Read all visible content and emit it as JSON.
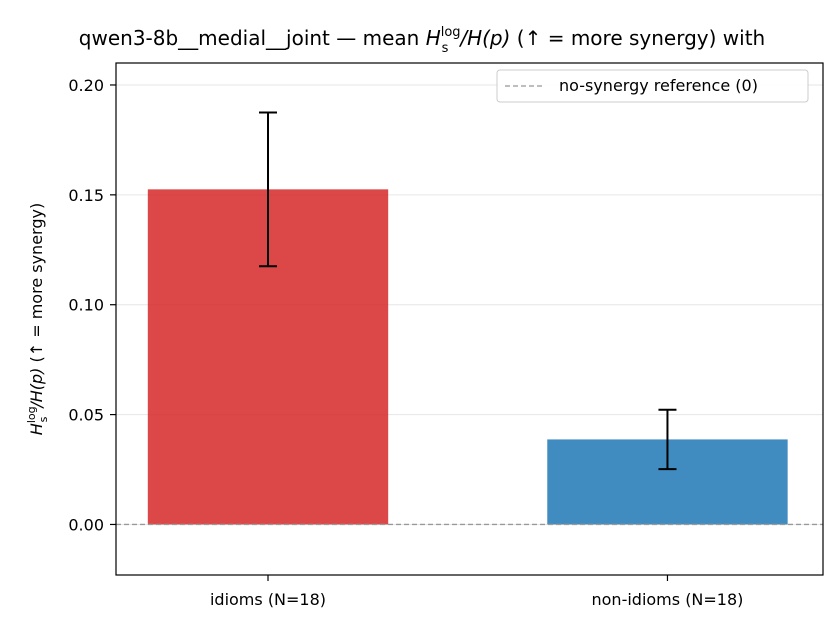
{
  "chart_data": {
    "type": "bar",
    "title": "qwen3-8b__medial__joint — mean Hₛˡᵒᵍ/H(p)  (↑ = more synergy) with",
    "title_parts": {
      "prefix": "qwen3-8b__medial__joint — mean ",
      "var": "H",
      "sup": "log",
      "sub": "s",
      "suffix_var": "/H(p)",
      "suffix": "  (↑ = more synergy) with"
    },
    "ylabel": "Hₛˡᵒᵍ/H(p)  (↑ = more synergy)",
    "ylabel_parts": {
      "var": "H",
      "sup": "log",
      "sub": "s",
      "suffix_var": "/H(p)",
      "suffix": "  (↑ = more synergy)"
    },
    "xlabel": "",
    "categories": [
      "idioms (N=18)",
      "non-idioms (N=18)"
    ],
    "values": [
      0.1525,
      0.0387
    ],
    "errors": [
      0.035,
      0.0135
    ],
    "bar_colors": [
      "#d62728",
      "#1f77b4"
    ],
    "ylim": [
      -0.023,
      0.21
    ],
    "yticks": [
      0.0,
      0.05,
      0.1,
      0.15,
      0.2
    ],
    "ytick_labels": [
      "0.00",
      "0.05",
      "0.10",
      "0.15",
      "0.20"
    ],
    "grid": "y",
    "reference_line": {
      "value": 0,
      "label": "no-synergy reference (0)",
      "style": "dashed",
      "color": "#999999"
    },
    "legend": {
      "position": "top-right",
      "entries": [
        "no-synergy reference (0)"
      ]
    }
  }
}
